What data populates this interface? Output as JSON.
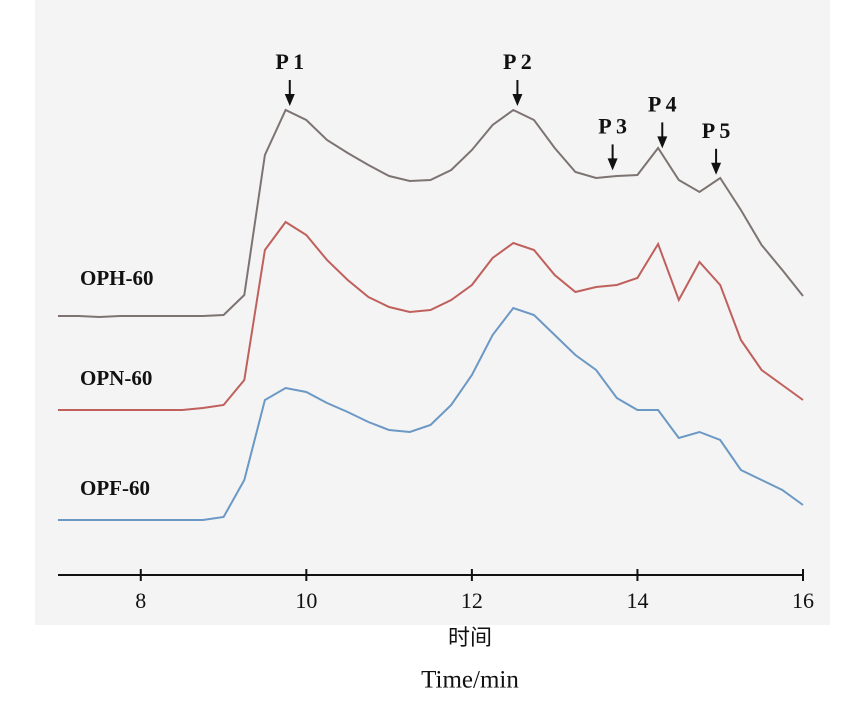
{
  "chart_data": {
    "type": "line",
    "xlabel": "时间",
    "xlabel_en": "Time/min",
    "x": [
      7,
      7.25,
      7.5,
      7.75,
      8,
      8.25,
      8.5,
      8.75,
      9,
      9.25,
      9.5,
      9.75,
      10,
      10.25,
      10.5,
      10.75,
      11,
      11.25,
      11.5,
      11.75,
      12,
      12.25,
      12.5,
      12.75,
      13,
      13.25,
      13.5,
      13.75,
      14,
      14.25,
      14.5,
      14.75,
      15,
      15.25,
      15.5,
      15.75,
      16
    ],
    "series": [
      {
        "name": "OPH-60",
        "color": "#7d7472",
        "values": [
          51.8,
          51.8,
          51.6,
          51.8,
          51.8,
          51.8,
          51.8,
          51.8,
          52,
          56,
          84,
          93,
          91,
          87,
          84.4,
          82,
          79.8,
          78.8,
          79,
          81,
          85,
          90,
          93,
          91,
          85.4,
          80.6,
          79.4,
          79.8,
          80,
          85.4,
          79,
          76.6,
          79.4,
          73,
          66,
          61,
          55.8
        ]
      },
      {
        "name": "OPN-60",
        "color": "#c0605c",
        "values": [
          33,
          33,
          33,
          33,
          33,
          33,
          33,
          33.4,
          34,
          39,
          65,
          70.6,
          68,
          63,
          59,
          55.6,
          53.6,
          52.6,
          53,
          55,
          58,
          63.4,
          66.4,
          65,
          60,
          56.6,
          57.6,
          58,
          59.4,
          66.2,
          55,
          62.6,
          58,
          47,
          41,
          38,
          35
        ]
      },
      {
        "name": "OPF-60",
        "color": "#6b98c4",
        "values": [
          11,
          11,
          11,
          11,
          11,
          11,
          11,
          11,
          11.6,
          19,
          35,
          37.4,
          36.6,
          34.4,
          32.6,
          30.6,
          29,
          28.6,
          30,
          34,
          40,
          48,
          53.4,
          52,
          48,
          44,
          41,
          35.4,
          33,
          33,
          27.4,
          28.6,
          27,
          21,
          19,
          17,
          14
        ]
      }
    ],
    "annotations": [
      {
        "label": "P 1",
        "x": 9.8
      },
      {
        "label": "P 2",
        "x": 12.55
      },
      {
        "label": "P 3",
        "x": 13.7
      },
      {
        "label": "P 4",
        "x": 14.3
      },
      {
        "label": "P 5",
        "x": 14.95
      }
    ],
    "xlim": [
      7,
      16
    ],
    "xticks": [
      8,
      10,
      12,
      14,
      16
    ],
    "ylim": [
      0,
      115
    ]
  }
}
